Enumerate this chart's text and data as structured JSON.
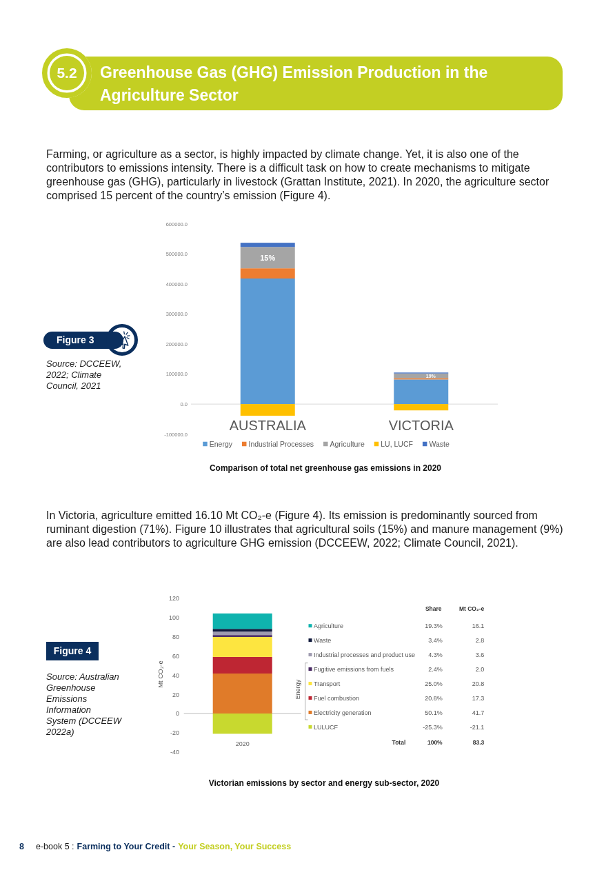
{
  "chart_data": [
    {
      "type": "bar",
      "title": "Comparison of total net greenhouse gas emissions in 2020",
      "categories": [
        "AUSTRALIA",
        "VICTORIA"
      ],
      "stacked": true,
      "series": [
        {
          "name": "Energy",
          "color": "#5b9bd5",
          "values": [
            418000,
            82000
          ]
        },
        {
          "name": "Industrial Processes",
          "color": "#ed7d31",
          "values": [
            34000,
            4000
          ]
        },
        {
          "name": "Agriculture",
          "color": "#a5a5a5",
          "values": [
            71000,
            16000
          ]
        },
        {
          "name": "LU, LUCF",
          "color": "#ffc000",
          "values": [
            -39000,
            -21000
          ]
        },
        {
          "name": "Waste",
          "color": "#4472c4",
          "values": [
            14000,
            3000
          ]
        }
      ],
      "ylim": [
        -100000,
        600000
      ],
      "yticks": [
        {
          "value": -100000,
          "label": "-100000.0"
        },
        {
          "value": 0,
          "label": "0.0"
        },
        {
          "value": 100000,
          "label": "100000.0"
        },
        {
          "value": 200000,
          "label": "200000.0"
        },
        {
          "value": 300000,
          "label": "300000.0"
        },
        {
          "value": 400000,
          "label": "400000.0"
        },
        {
          "value": 500000,
          "label": "500000.0"
        },
        {
          "value": 600000,
          "label": "600000.0"
        }
      ],
      "legend": "bottom",
      "annotations": [
        "5.2",
        "Greenhouse Gas (GHG) Emission Production in the Agriculture Sector",
        "Farming, or agriculture as a sector, is highly impacted by climate change. Yet, it is also one of the contributors to emissions intensity. There is a difficult task on how to create mechanisms to mitigate greenhouse gas (GHG), particularly in livestock (Grattan Institute, 2021). In 2020, the agriculture sector comprised 15 percent of the country’s emission (Figure 4).",
        "Figure 3",
        "Source: DCCEEW, 2022; Climate Council, 2021",
        "15%",
        "19%"
      ]
    },
    {
      "type": "bar",
      "title": "Victorian emissions by sector and energy sub-sector, 2020",
      "ylabel": "Mt CO₂-e",
      "categories": [
        "2020"
      ],
      "stacked": true,
      "series": [
        {
          "name": "Electricity generation",
          "color": "#e07b29",
          "values": [
            41.7
          ]
        },
        {
          "name": "Fuel combustion",
          "color": "#be2633",
          "values": [
            17.3
          ]
        },
        {
          "name": "Transport",
          "color": "#fde540",
          "values": [
            20.8
          ]
        },
        {
          "name": "Fugitive emissions from fuels",
          "color": "#4a2b64",
          "values": [
            2.0
          ]
        },
        {
          "name": "Industrial processes and product use",
          "color": "#9f9bb0",
          "values": [
            3.6
          ]
        },
        {
          "name": "Waste",
          "color": "#111a3d",
          "values": [
            2.8
          ]
        },
        {
          "name": "Agriculture",
          "color": "#0fb3ae",
          "values": [
            16.1
          ]
        },
        {
          "name": "LULUCF",
          "color": "#c8d92f",
          "values": [
            -21.1
          ]
        }
      ],
      "ylim": [
        -40,
        120
      ],
      "yticks": [
        -40,
        -20,
        0,
        20,
        40,
        60,
        80,
        100,
        120
      ],
      "legend": "right",
      "annotations": [
        "In Victoria, agriculture emitted 16.10 Mt CO₂-e (Figure 4). Its emission is predominantly sourced from ruminant digestion (71%). Figure 10 illustrates that agricultural soils (15%) and manure management (9%) are also lead contributors to agriculture GHG emission (DCCEEW, 2022; Climate Council, 2021).",
        "Figure 4",
        "Source: Australian Greenhouse Emissions Information System (DCCEEW 2022a)",
        "Share",
        "Mt CO₂-e",
        "19.3%",
        "16.1",
        "3.4%",
        "2.8",
        "4.3%",
        "3.6",
        "2.4%",
        "2.0",
        "25.0%",
        "20.8",
        "20.8%",
        "17.3",
        "50.1%",
        "41.7",
        "-25.3%",
        "-21.1",
        "Energy",
        "Total",
        "100%",
        "83.3",
        "8",
        "e-book 5 :",
        "Farming to Your Credit -",
        "Your Season, Your Success"
      ]
    }
  ]
}
